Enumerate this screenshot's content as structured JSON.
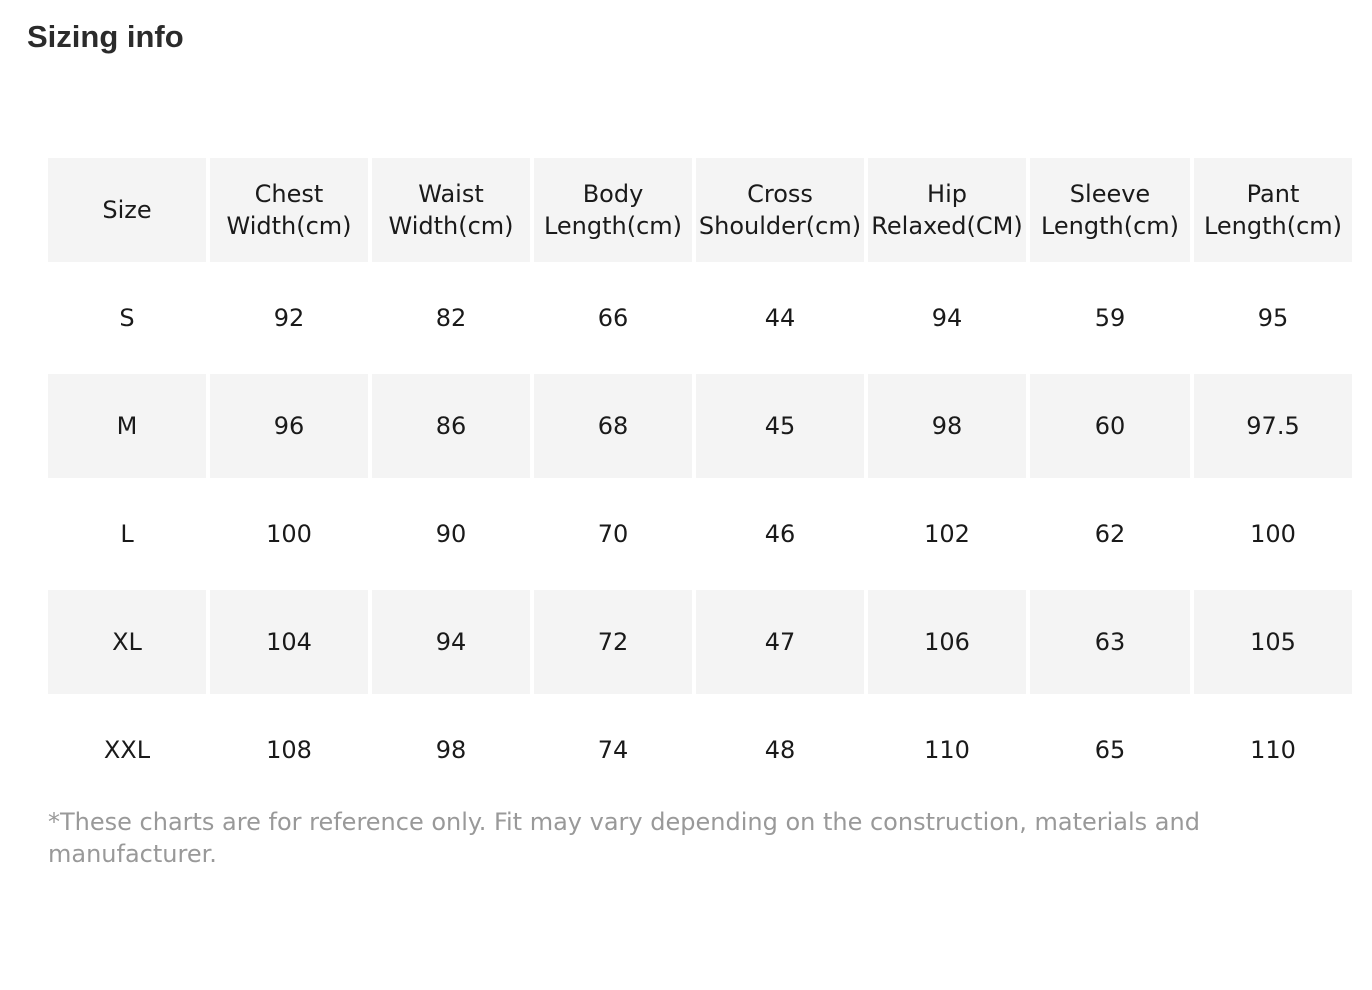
{
  "title": "Sizing info",
  "table": {
    "headers": [
      [
        "Size"
      ],
      [
        "Chest",
        "Width(cm)"
      ],
      [
        "Waist",
        "Width(cm)"
      ],
      [
        "Body",
        "Length(cm)"
      ],
      [
        "Cross",
        "Shoulder(cm)"
      ],
      [
        "Hip",
        "Relaxed(CM)"
      ],
      [
        "Sleeve",
        "Length(cm)"
      ],
      [
        "Pant",
        "Length(cm)"
      ]
    ],
    "rows": [
      [
        "S",
        "92",
        "82",
        "66",
        "44",
        "94",
        "59",
        "95"
      ],
      [
        "M",
        "96",
        "86",
        "68",
        "45",
        "98",
        "60",
        "97.5"
      ],
      [
        "L",
        "100",
        "90",
        "70",
        "46",
        "102",
        "62",
        "100"
      ],
      [
        "XL",
        "104",
        "94",
        "72",
        "47",
        "106",
        "63",
        "105"
      ],
      [
        "XXL",
        "108",
        "98",
        "74",
        "48",
        "110",
        "65",
        "110"
      ]
    ]
  },
  "note": "*These charts are for reference only. Fit may vary depending on the construction, materials and manufacturer.",
  "colors": {
    "shade": "#f4f4f4",
    "text": "#1a1a1a",
    "note": "#999999"
  }
}
